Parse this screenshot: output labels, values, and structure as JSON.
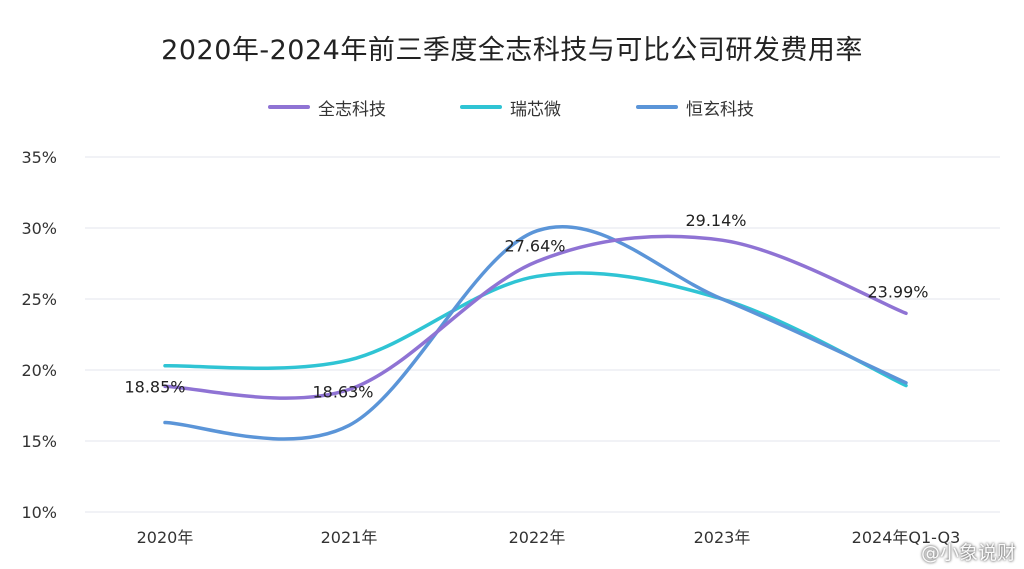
{
  "watermark": "@小象说财",
  "chart_data": {
    "type": "line",
    "title": "2020年-2024年前三季度全志科技与可比公司研发费用率",
    "categories": [
      "2020年",
      "2021年",
      "2022年",
      "2023年",
      "2024年Q1-Q3"
    ],
    "y_ticks": [
      "10%",
      "15%",
      "20%",
      "25%",
      "30%",
      "35%"
    ],
    "ylim": [
      10,
      35
    ],
    "grid": true,
    "legend_position": "top-center",
    "series": [
      {
        "name": "全志科技",
        "color": "#8f73d4",
        "values": [
          18.85,
          18.63,
          27.64,
          29.14,
          23.99
        ],
        "labels": [
          "18.85%",
          "18.63%",
          "27.64%",
          "29.14%",
          "23.99%"
        ]
      },
      {
        "name": "瑞芯微",
        "color": "#2fc4d4",
        "values": [
          20.3,
          20.7,
          26.6,
          25.0,
          18.9
        ],
        "labels": []
      },
      {
        "name": "恒玄科技",
        "color": "#5b95d8",
        "values": [
          16.3,
          16.1,
          29.8,
          25.0,
          19.1
        ],
        "labels": []
      }
    ]
  }
}
